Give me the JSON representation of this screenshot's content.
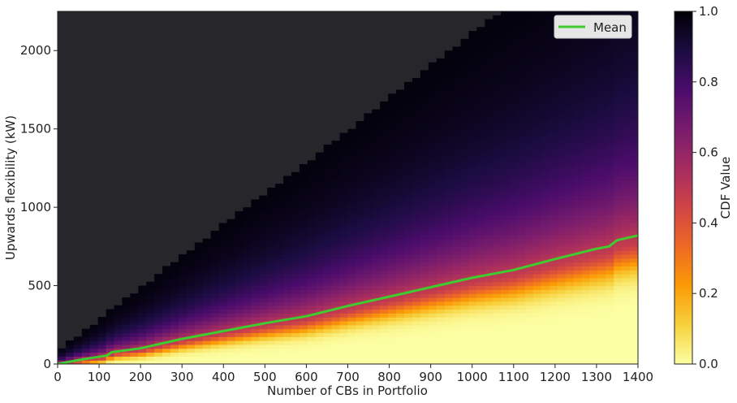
{
  "chart_data": {
    "type": "heatmap",
    "title": "",
    "xlabel": "Number of CBs in Portfolio",
    "ylabel": "Upwards flexibility (kW)",
    "xlim": [
      0,
      1400
    ],
    "ylim": [
      0,
      2250
    ],
    "x_ticks": [
      0,
      100,
      200,
      300,
      400,
      500,
      600,
      700,
      800,
      900,
      1000,
      1100,
      1200,
      1300,
      1400
    ],
    "y_ticks": [
      0,
      500,
      1000,
      1500,
      2000
    ],
    "grid": false,
    "colormap": "inferno_r",
    "colorbar": {
      "label": "CDF Value",
      "range": [
        0,
        1
      ],
      "ticks": [
        "0.0",
        "0.2",
        "0.4",
        "0.6",
        "0.8",
        "1.0"
      ],
      "stops": [
        "#fcffa4",
        "#f7d13d",
        "#fb9b06",
        "#ed6925",
        "#cf4446",
        "#a52c60",
        "#781c6d",
        "#4a0c6b",
        "#1b0c41",
        "#000004"
      ]
    },
    "background_color": "#27272b",
    "mean_color": "#3ecc2e",
    "legend": {
      "position": "top-right",
      "entries": [
        "Mean"
      ]
    },
    "series": [
      {
        "name": "Mean",
        "x": [
          0,
          50,
          120,
          130,
          200,
          250,
          300,
          400,
          500,
          600,
          700,
          800,
          900,
          1000,
          1100,
          1200,
          1300,
          1330,
          1350,
          1400
        ],
        "y": [
          0,
          25,
          55,
          75,
          100,
          130,
          160,
          210,
          260,
          305,
          370,
          430,
          490,
          550,
          600,
          670,
          735,
          750,
          790,
          820
        ]
      }
    ]
  }
}
